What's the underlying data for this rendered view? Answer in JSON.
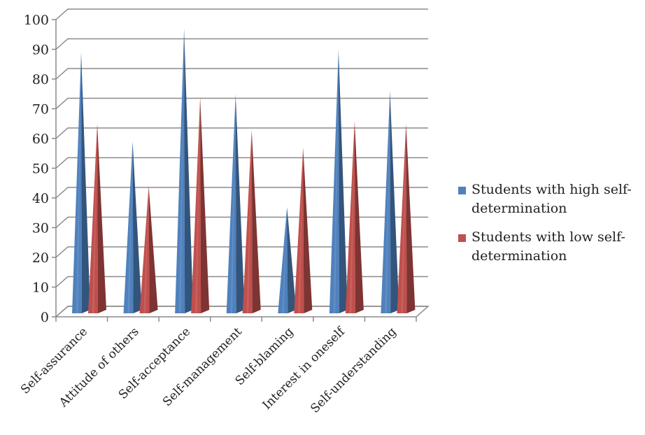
{
  "chart_data": {
    "type": "bar",
    "style": "3d-cone",
    "categories": [
      "Self-assurance",
      "Attitude of others",
      "Self-acceptance",
      "Self-management",
      "Self-blaming",
      "Interest in oneself",
      "Self-understanding"
    ],
    "series": [
      {
        "name": "Students with high self-determination",
        "color": "#4F81BD",
        "values": [
          88,
          58,
          96,
          74,
          36,
          89,
          75
        ]
      },
      {
        "name": "Students with low self-determination",
        "color": "#C0504D",
        "values": [
          64,
          43,
          73,
          62,
          56,
          65,
          64
        ]
      }
    ],
    "ylim": [
      0,
      100
    ],
    "yticks": [
      0,
      10,
      20,
      30,
      40,
      50,
      60,
      70,
      80,
      90,
      100
    ],
    "grid": true,
    "legend": "right"
  }
}
